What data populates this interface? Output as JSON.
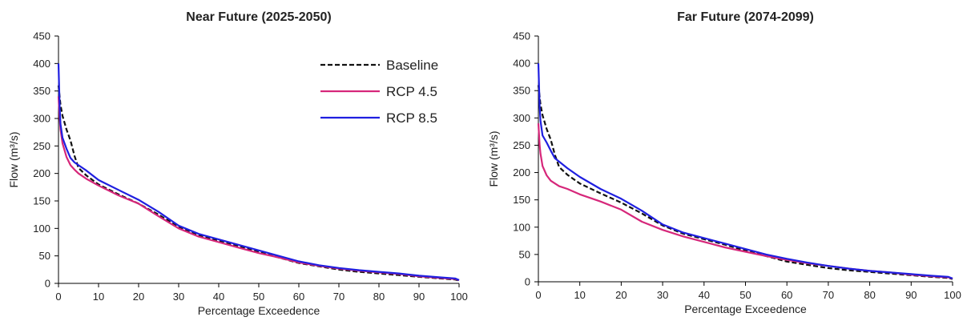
{
  "chart_data": [
    {
      "type": "line",
      "title": "Near Future (2025-2050)",
      "xlabel": "Percentage Exceedence",
      "ylabel": "Flow  (m³/s)",
      "xlim": [
        0,
        100
      ],
      "ylim": [
        0,
        450
      ],
      "xticks": [
        0,
        10,
        20,
        30,
        40,
        50,
        60,
        70,
        80,
        90,
        100
      ],
      "yticks": [
        0,
        50,
        100,
        150,
        200,
        250,
        300,
        350,
        400,
        450
      ],
      "grid": false,
      "legend": "top-right",
      "series": [
        {
          "name": "Baseline",
          "color": "#111111",
          "dash": "dashed",
          "x": [
            0,
            0.5,
            1,
            2,
            3,
            4,
            5,
            7,
            10,
            15,
            20,
            25,
            30,
            35,
            40,
            45,
            50,
            55,
            60,
            65,
            70,
            75,
            80,
            85,
            90,
            95,
            99,
            100
          ],
          "y": [
            360,
            325,
            305,
            280,
            260,
            232,
            210,
            196,
            180,
            162,
            145,
            125,
            103,
            88,
            78,
            68,
            57,
            47,
            37,
            31,
            25,
            21,
            18,
            15,
            12,
            9,
            7,
            5
          ]
        },
        {
          "name": "RCP 4.5",
          "color": "#d6277a",
          "dash": "solid",
          "x": [
            0,
            0.3,
            0.5,
            1,
            2,
            3,
            4,
            5,
            7,
            10,
            15,
            20,
            25,
            30,
            35,
            40,
            45,
            50,
            55,
            60,
            65,
            70,
            75,
            80,
            85,
            90,
            95,
            99,
            100
          ],
          "y": [
            340,
            300,
            280,
            255,
            230,
            215,
            207,
            200,
            190,
            178,
            160,
            145,
            122,
            100,
            85,
            75,
            65,
            55,
            47,
            38,
            32,
            27,
            23,
            20,
            17,
            13,
            10,
            8,
            6
          ]
        },
        {
          "name": "RCP 8.5",
          "color": "#1f1fe0",
          "dash": "solid",
          "x": [
            0,
            0.3,
            0.5,
            1,
            2,
            3,
            4,
            5,
            7,
            10,
            15,
            20,
            25,
            30,
            35,
            40,
            45,
            50,
            55,
            60,
            65,
            70,
            75,
            80,
            85,
            90,
            95,
            99,
            100
          ],
          "y": [
            400,
            320,
            290,
            265,
            245,
            228,
            220,
            215,
            205,
            188,
            170,
            152,
            130,
            105,
            90,
            80,
            70,
            60,
            50,
            40,
            33,
            28,
            24,
            21,
            18,
            14,
            11,
            9,
            6
          ]
        }
      ]
    },
    {
      "type": "line",
      "title": "Far Future (2074-2099)",
      "xlabel": "Percentage Exceedence",
      "ylabel": "Flow  (m³/s)",
      "xlim": [
        0,
        100
      ],
      "ylim": [
        0,
        450
      ],
      "xticks": [
        0,
        10,
        20,
        30,
        40,
        50,
        60,
        70,
        80,
        90,
        100
      ],
      "yticks": [
        0,
        50,
        100,
        150,
        200,
        250,
        300,
        350,
        400,
        450
      ],
      "grid": false,
      "series": [
        {
          "name": "Baseline",
          "color": "#111111",
          "dash": "dashed",
          "x": [
            0,
            0.5,
            1,
            2,
            3,
            4,
            5,
            7,
            10,
            15,
            20,
            25,
            30,
            35,
            40,
            45,
            50,
            55,
            60,
            65,
            70,
            75,
            80,
            85,
            90,
            95,
            99,
            100
          ],
          "y": [
            360,
            325,
            305,
            280,
            260,
            232,
            210,
            196,
            180,
            162,
            145,
            125,
            103,
            88,
            78,
            68,
            57,
            47,
            37,
            31,
            25,
            21,
            18,
            15,
            12,
            9,
            7,
            5
          ]
        },
        {
          "name": "RCP 4.5",
          "color": "#d6277a",
          "dash": "solid",
          "x": [
            0,
            0.3,
            0.5,
            1,
            2,
            3,
            4,
            5,
            7,
            10,
            15,
            20,
            25,
            30,
            35,
            40,
            45,
            50,
            55,
            60,
            65,
            70,
            75,
            80,
            85,
            90,
            95,
            99,
            100
          ],
          "y": [
            290,
            250,
            235,
            212,
            195,
            185,
            180,
            175,
            170,
            160,
            147,
            132,
            110,
            95,
            83,
            73,
            63,
            55,
            47,
            40,
            34,
            29,
            24,
            20,
            17,
            13,
            10,
            8,
            6
          ]
        },
        {
          "name": "RCP 8.5",
          "color": "#1f1fe0",
          "dash": "solid",
          "x": [
            0,
            0.3,
            0.5,
            1,
            2,
            3,
            4,
            5,
            7,
            10,
            15,
            20,
            25,
            30,
            35,
            40,
            45,
            50,
            55,
            60,
            65,
            70,
            75,
            80,
            85,
            90,
            95,
            99,
            100
          ],
          "y": [
            400,
            320,
            295,
            268,
            255,
            240,
            226,
            220,
            208,
            192,
            170,
            152,
            130,
            105,
            90,
            80,
            70,
            60,
            50,
            42,
            35,
            29,
            24,
            20,
            17,
            14,
            11,
            9,
            6
          ]
        }
      ]
    }
  ]
}
